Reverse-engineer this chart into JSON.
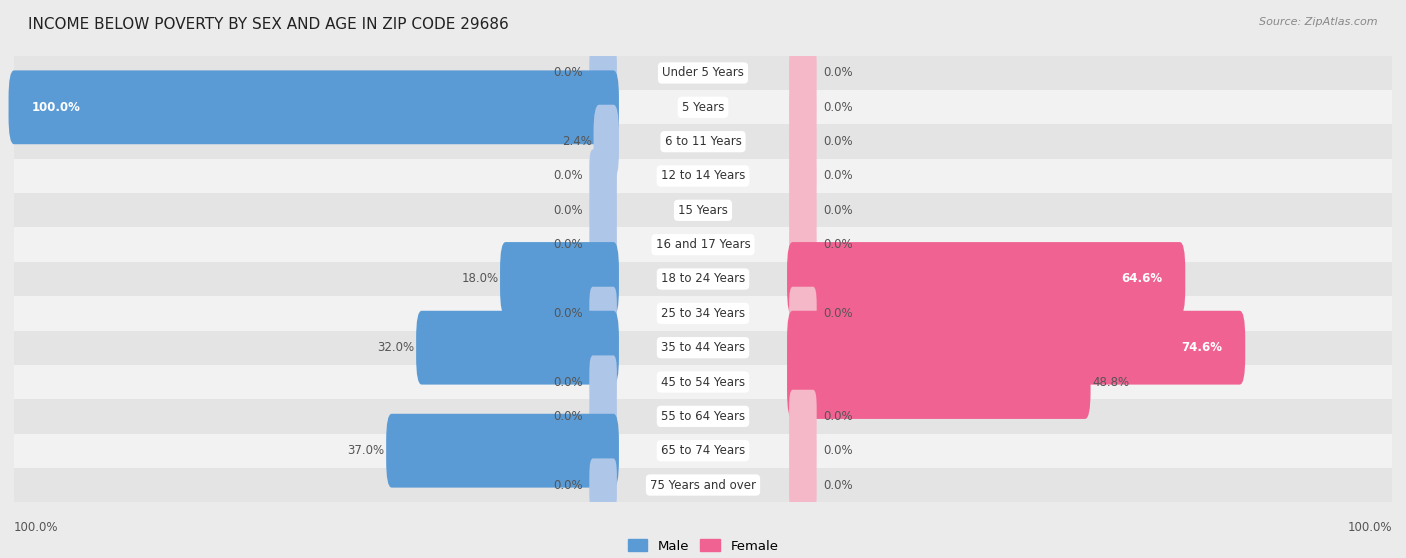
{
  "title": "INCOME BELOW POVERTY BY SEX AND AGE IN ZIP CODE 29686",
  "source": "Source: ZipAtlas.com",
  "categories": [
    "Under 5 Years",
    "5 Years",
    "6 to 11 Years",
    "12 to 14 Years",
    "15 Years",
    "16 and 17 Years",
    "18 to 24 Years",
    "25 to 34 Years",
    "35 to 44 Years",
    "45 to 54 Years",
    "55 to 64 Years",
    "65 to 74 Years",
    "75 Years and over"
  ],
  "male_values": [
    0.0,
    100.0,
    2.4,
    0.0,
    0.0,
    0.0,
    18.0,
    0.0,
    32.0,
    0.0,
    0.0,
    37.0,
    0.0
  ],
  "female_values": [
    0.0,
    0.0,
    0.0,
    0.0,
    0.0,
    0.0,
    64.6,
    0.0,
    74.6,
    48.8,
    0.0,
    0.0,
    0.0
  ],
  "male_light": "#aec6e8",
  "male_solid": "#5b9bd5",
  "female_light": "#f4b8c8",
  "female_solid": "#f06292",
  "bg_color": "#ebebeb",
  "row_colors": [
    "#e4e4e4",
    "#f2f2f2"
  ],
  "max_value": 100.0,
  "label_fontsize": 8.5,
  "title_fontsize": 11,
  "source_fontsize": 8,
  "legend_fontsize": 9.5,
  "axis_label_fontsize": 8.5,
  "center_label_color": "#333333",
  "value_label_color": "#555555",
  "value_label_inside_color": "white"
}
